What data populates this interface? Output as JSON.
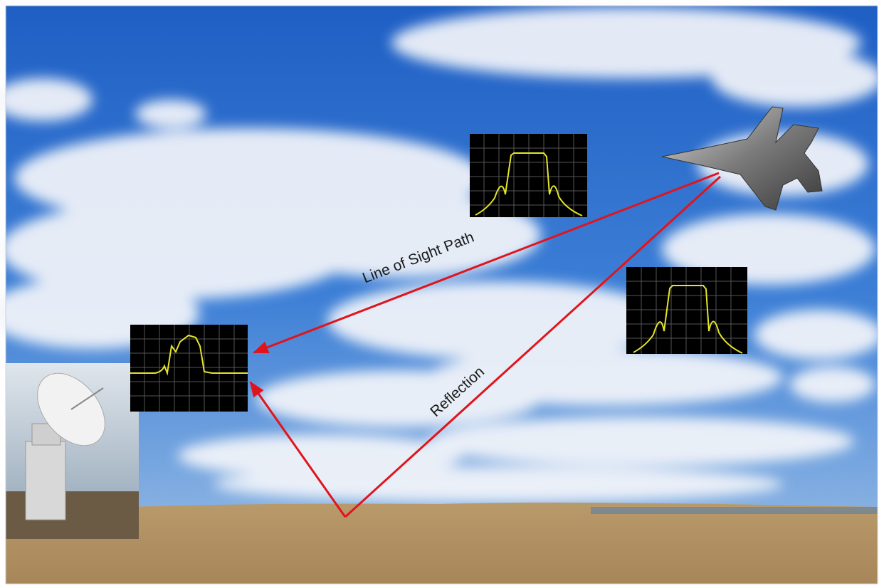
{
  "labels": {
    "line_of_sight": "Line of Sight Path",
    "reflection": "Reflection"
  }
}
